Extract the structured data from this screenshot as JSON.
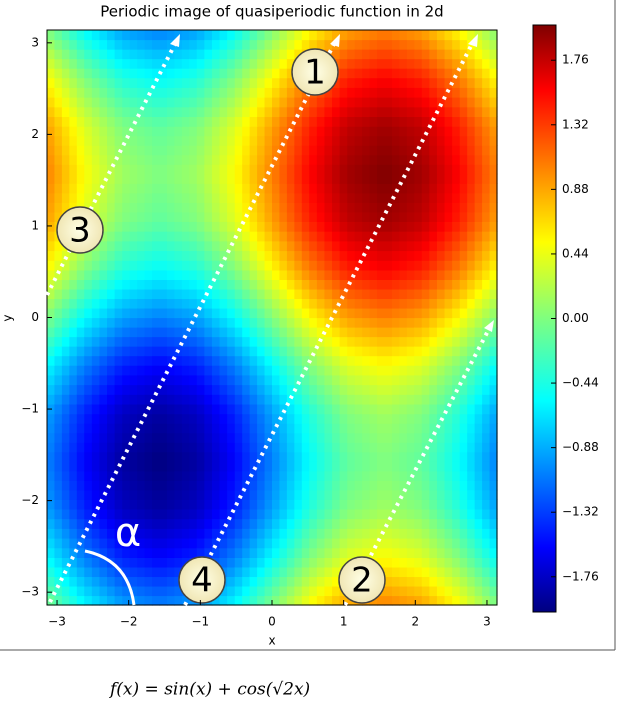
{
  "chart_data": {
    "type": "heatmap",
    "title": "Periodic image of quasiperiodic function in 2d",
    "xlabel": "x",
    "ylabel": "y",
    "x": [
      -3.14,
      -2.62,
      -2.09,
      -1.57,
      -1.05,
      -0.52,
      0,
      0.52,
      1.05,
      1.57,
      2.09,
      2.62,
      3.14
    ],
    "y": [
      -3.14,
      -2.62,
      -2.09,
      -1.57,
      -1.05,
      -0.52,
      0,
      0.52,
      1.05,
      1.57,
      2.09,
      2.62,
      3.14
    ],
    "z": [
      [
        0,
        -0.5,
        -0.87,
        -1,
        -0.87,
        -0.5,
        0,
        0.5,
        0.87,
        1,
        0.87,
        0.5,
        0
      ],
      [
        -0.5,
        -1,
        -1.37,
        -1.5,
        -1.37,
        -1,
        -0.5,
        0,
        0.37,
        0.5,
        0.37,
        0,
        -0.5
      ],
      [
        -0.87,
        -1.37,
        -1.74,
        -1.87,
        -1.74,
        -1.37,
        -0.87,
        -0.37,
        0,
        0.13,
        0,
        -0.37,
        -0.87
      ],
      [
        -1,
        -1.5,
        -1.87,
        -2,
        -1.87,
        -1.5,
        -1,
        -0.5,
        -0.13,
        0,
        -0.13,
        -0.5,
        -1
      ],
      [
        -0.87,
        -1.37,
        -1.74,
        -1.87,
        -1.74,
        -1.37,
        -0.87,
        -0.37,
        0,
        0.13,
        0,
        -0.37,
        -0.87
      ],
      [
        -0.5,
        -1,
        -1.37,
        -1.5,
        -1.37,
        -1,
        -0.5,
        0,
        0.37,
        0.5,
        0.37,
        0,
        -0.5
      ],
      [
        0,
        -0.5,
        -0.87,
        -1,
        -0.87,
        -0.5,
        0,
        0.5,
        0.87,
        1,
        0.87,
        0.5,
        0
      ],
      [
        0.5,
        0,
        -0.37,
        -0.5,
        -0.37,
        0,
        0.5,
        1,
        1.37,
        1.5,
        1.37,
        1,
        0.5
      ],
      [
        0.87,
        0.37,
        0,
        -0.13,
        0,
        0.37,
        0.87,
        1.37,
        1.74,
        1.87,
        1.74,
        1.37,
        0.87
      ],
      [
        1,
        0.5,
        0.13,
        0,
        0.13,
        0.5,
        1,
        1.5,
        1.87,
        2,
        1.87,
        1.5,
        1
      ],
      [
        0.87,
        0.37,
        0,
        -0.13,
        0,
        0.37,
        0.87,
        1.37,
        1.74,
        1.87,
        1.74,
        1.37,
        0.87
      ],
      [
        0.5,
        0,
        -0.37,
        -0.5,
        -0.37,
        0,
        0.5,
        1,
        1.37,
        1.5,
        1.37,
        1,
        0.5
      ],
      [
        0,
        -0.5,
        -0.87,
        -1,
        -0.87,
        -0.5,
        0,
        0.5,
        0.87,
        1,
        0.87,
        0.5,
        0
      ]
    ],
    "xlim": [
      -3.14,
      3.14
    ],
    "ylim": [
      -3.14,
      3.14
    ],
    "xticks": [
      {
        "value": -3,
        "label": "−3"
      },
      {
        "value": -2,
        "label": "−2"
      },
      {
        "value": -1,
        "label": "−1"
      },
      0,
      1,
      2,
      3
    ],
    "yticks": [
      {
        "value": -3,
        "label": "−3"
      },
      {
        "value": -2,
        "label": "−2"
      },
      {
        "value": -1,
        "label": "−1"
      },
      0,
      1,
      2,
      3
    ],
    "colorbar_lim": [
      -2,
      2
    ],
    "colorbar_ticks": [
      1.76,
      1.32,
      0.88,
      0.44,
      {
        "value": 0,
        "label": "0.00"
      },
      {
        "value": -0.44,
        "label": "−0.44"
      },
      {
        "value": -0.88,
        "label": "−0.88"
      },
      {
        "value": -1.32,
        "label": "−1.32"
      },
      {
        "value": -1.76,
        "label": "−1.76"
      }
    ],
    "colormap": "jet",
    "annotations": [
      "1",
      "2",
      "3",
      "4",
      "α"
    ],
    "formula": "f(x) =  sin(x) +  cos(√2x)"
  }
}
